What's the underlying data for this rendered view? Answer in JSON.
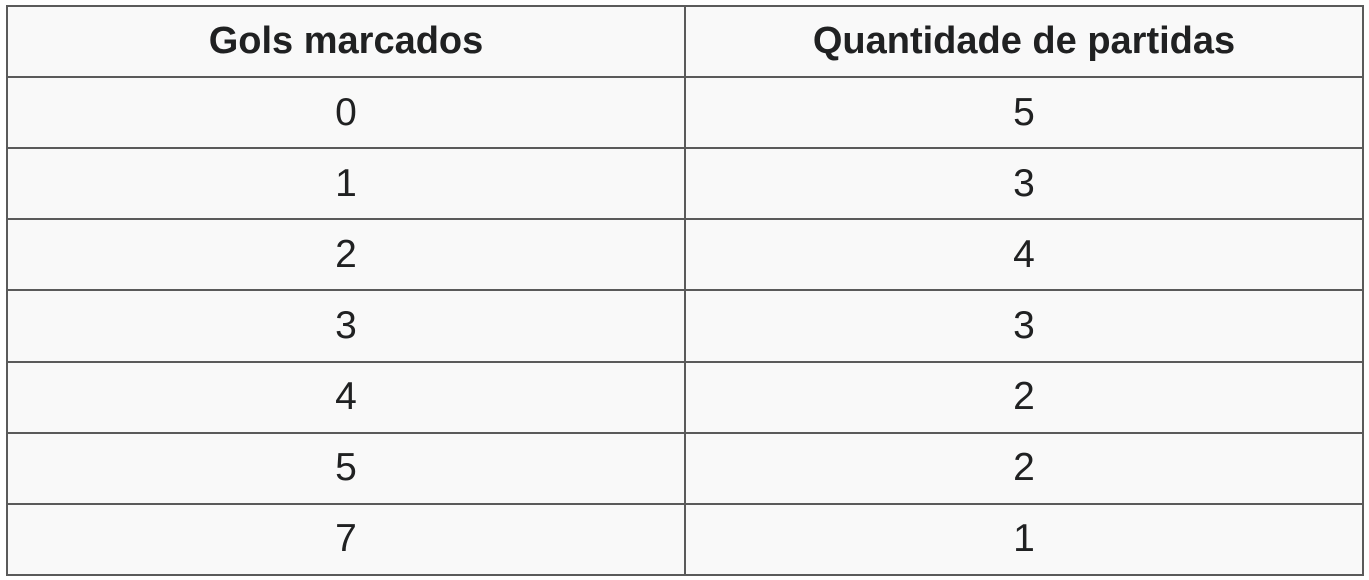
{
  "table": {
    "headers": [
      "Gols marcados",
      "Quantidade de partidas"
    ],
    "rows": [
      [
        "0",
        "5"
      ],
      [
        "1",
        "3"
      ],
      [
        "2",
        "4"
      ],
      [
        "3",
        "3"
      ],
      [
        "4",
        "2"
      ],
      [
        "5",
        "2"
      ],
      [
        "7",
        "1"
      ]
    ]
  }
}
